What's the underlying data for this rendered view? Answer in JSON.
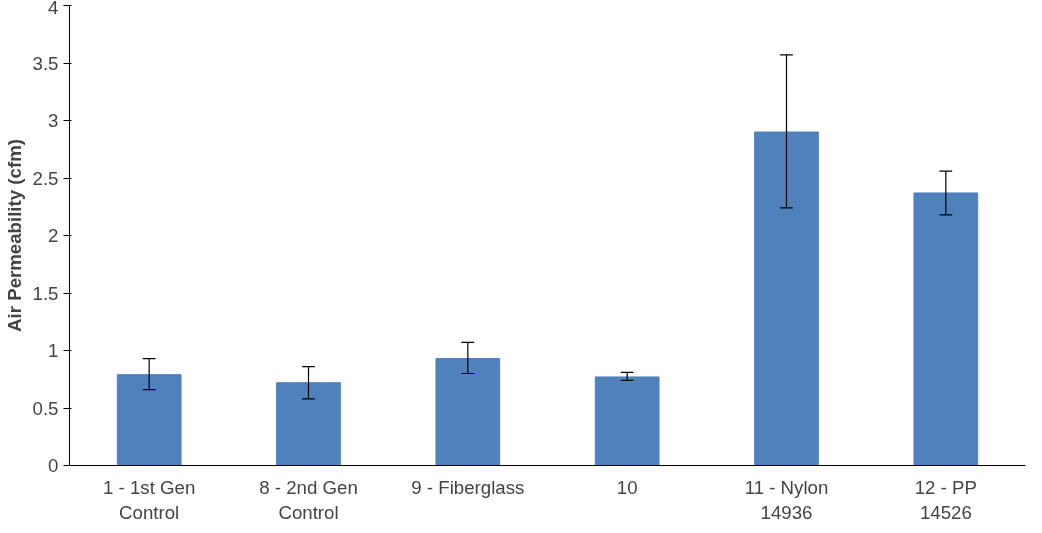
{
  "chart_data": {
    "type": "bar",
    "ylabel": "Air Permeability (cfm)",
    "categories": [
      "1 - 1st Gen Control",
      "8 - 2nd Gen Control",
      "9 - Fiberglass",
      "10",
      "11 - Nylon 14936",
      "12 - PP 14526"
    ],
    "values": [
      0.79,
      0.72,
      0.93,
      0.77,
      2.9,
      2.37
    ],
    "errors": [
      [
        0.66,
        0.93
      ],
      [
        0.58,
        0.86
      ],
      [
        0.8,
        1.07
      ],
      [
        0.74,
        0.81
      ],
      [
        2.24,
        3.57
      ],
      [
        2.18,
        2.56
      ]
    ],
    "color": "#4f81bd",
    "ylim": [
      0,
      4
    ],
    "yticks": [
      0,
      0.5,
      1,
      1.5,
      2,
      2.5,
      3,
      3.5,
      4
    ],
    "grid": false
  }
}
